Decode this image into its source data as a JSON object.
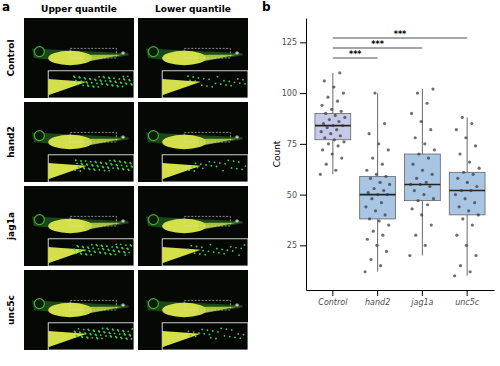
{
  "panel_a": {
    "label": "a",
    "columns": [
      "Upper quantile",
      "Lower quantile"
    ],
    "rows": [
      "Control",
      "hand2",
      "jag1a",
      "unc5c"
    ],
    "marker": "*"
  },
  "panel_b": {
    "label": "b"
  },
  "chart_data": {
    "type": "box",
    "y_label": "Count",
    "categories": [
      "Control",
      "hand2",
      "jag1a",
      "unc5c"
    ],
    "colors": [
      "#c6c9e8",
      "#a9c5e4",
      "#a9c5e4",
      "#a9c5e4"
    ],
    "boxes": [
      {
        "min": 60,
        "q1": 77,
        "median": 84,
        "q3": 90,
        "max": 110
      },
      {
        "min": 12,
        "q1": 38,
        "median": 50,
        "q3": 59,
        "max": 100
      },
      {
        "min": 20,
        "q1": 47,
        "median": 55,
        "q3": 70,
        "max": 102
      },
      {
        "min": 10,
        "q1": 40,
        "median": 52,
        "q3": 61,
        "max": 88
      }
    ],
    "points": [
      [
        60,
        62,
        65,
        68,
        70,
        72,
        74,
        75,
        76,
        77,
        78,
        79,
        80,
        81,
        82,
        83,
        84,
        84,
        85,
        86,
        87,
        88,
        89,
        90,
        91,
        92,
        94,
        96,
        98,
        100,
        103,
        106,
        110
      ],
      [
        12,
        15,
        18,
        22,
        25,
        28,
        30,
        32,
        35,
        37,
        38,
        40,
        42,
        44,
        46,
        48,
        50,
        50,
        51,
        52,
        53,
        55,
        56,
        58,
        59,
        60,
        62,
        65,
        68,
        72,
        75,
        80,
        85,
        100
      ],
      [
        20,
        25,
        30,
        35,
        40,
        43,
        45,
        47,
        48,
        50,
        52,
        54,
        55,
        55,
        56,
        58,
        60,
        62,
        65,
        68,
        70,
        72,
        75,
        78,
        82,
        86,
        90,
        95,
        100,
        102
      ],
      [
        10,
        12,
        15,
        20,
        25,
        30,
        35,
        38,
        40,
        42,
        44,
        46,
        48,
        50,
        52,
        52,
        54,
        56,
        58,
        60,
        61,
        63,
        66,
        70,
        74,
        78,
        82,
        85,
        88
      ]
    ],
    "annotations": [
      {
        "text": "***",
        "categories": [
          "Control",
          "hand2"
        ]
      },
      {
        "text": "***",
        "categories": [
          "Control",
          "jag1a"
        ]
      },
      {
        "text": "***",
        "categories": [
          "Control",
          "unc5c"
        ]
      }
    ],
    "ylim": [
      3,
      137
    ],
    "yticks": [
      25,
      50,
      75,
      100,
      125
    ],
    "grid": false
  }
}
